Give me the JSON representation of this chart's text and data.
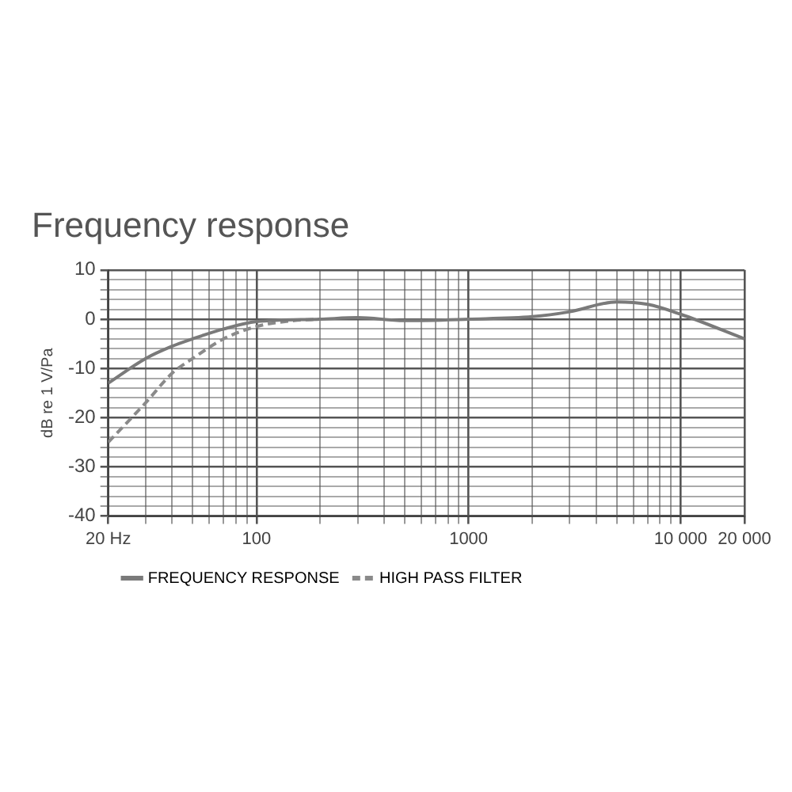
{
  "chart_data": {
    "type": "line",
    "title": "Frequency response",
    "ylabel": "dB re 1 V/Pa",
    "log": "x",
    "grid": true,
    "legend": "bottom left",
    "marker": "none",
    "xlim": [
      20,
      20000
    ],
    "ylim": [
      -40,
      10
    ],
    "xticks": [
      {
        "value": 20,
        "label": "20 Hz"
      },
      {
        "value": 30,
        "label": null
      },
      {
        "value": 40,
        "label": null
      },
      {
        "value": 50,
        "label": null
      },
      {
        "value": 60,
        "label": null
      },
      {
        "value": 70,
        "label": null
      },
      {
        "value": 80,
        "label": null
      },
      {
        "value": 90,
        "label": null
      },
      100,
      {
        "value": 200,
        "label": null
      },
      {
        "value": 300,
        "label": null
      },
      {
        "value": 400,
        "label": null
      },
      {
        "value": 500,
        "label": null
      },
      {
        "value": 600,
        "label": null
      },
      {
        "value": 700,
        "label": null
      },
      {
        "value": 800,
        "label": null
      },
      {
        "value": 900,
        "label": null
      },
      1000,
      {
        "value": 2000,
        "label": null
      },
      {
        "value": 3000,
        "label": null
      },
      {
        "value": 4000,
        "label": null
      },
      {
        "value": 5000,
        "label": null
      },
      {
        "value": 6000,
        "label": null
      },
      {
        "value": 7000,
        "label": null
      },
      {
        "value": 8000,
        "label": null
      },
      {
        "value": 9000,
        "label": null
      },
      {
        "value": 10000,
        "label": "10 000"
      },
      {
        "value": 20000,
        "label": "20 000"
      }
    ],
    "yticks": [
      -40,
      {
        "value": -38,
        "label": null
      },
      {
        "value": -36,
        "label": null
      },
      {
        "value": -34,
        "label": null
      },
      {
        "value": -32,
        "label": null
      },
      -30,
      {
        "value": -28,
        "label": null
      },
      {
        "value": -26,
        "label": null
      },
      {
        "value": -24,
        "label": null
      },
      {
        "value": -22,
        "label": null
      },
      -20,
      {
        "value": -18,
        "label": null
      },
      {
        "value": -16,
        "label": null
      },
      {
        "value": -14,
        "label": null
      },
      {
        "value": -12,
        "label": null
      },
      -10,
      {
        "value": -8,
        "label": null
      },
      {
        "value": -6,
        "label": null
      },
      {
        "value": -4,
        "label": null
      },
      {
        "value": -2,
        "label": null
      },
      0,
      {
        "value": 2,
        "label": null
      },
      {
        "value": 4,
        "label": null
      },
      {
        "value": 6,
        "label": null
      },
      {
        "value": 8,
        "label": null
      },
      10
    ],
    "series": [
      {
        "name": "FREQUENCY RESPONSE",
        "color": "#7a7a7a",
        "line_style": "solid",
        "x": [
          20,
          30,
          40,
          50,
          70,
          100,
          200,
          300,
          500,
          1000,
          2000,
          3000,
          5000,
          7000,
          10000,
          20000
        ],
        "values": [
          -13,
          -8,
          -5.5,
          -4,
          -2,
          -0.5,
          0,
          0.3,
          -0.3,
          0,
          0.5,
          1.5,
          3.5,
          3,
          1,
          -4
        ]
      },
      {
        "name": "HIGH PASS FILTER",
        "color": "#8a8a8a",
        "line_style": "dashed",
        "x": [
          20,
          30,
          40,
          50,
          70,
          100,
          150,
          200
        ],
        "values": [
          -25,
          -17,
          -11,
          -8,
          -4,
          -1.5,
          -0.3,
          0
        ]
      }
    ]
  }
}
